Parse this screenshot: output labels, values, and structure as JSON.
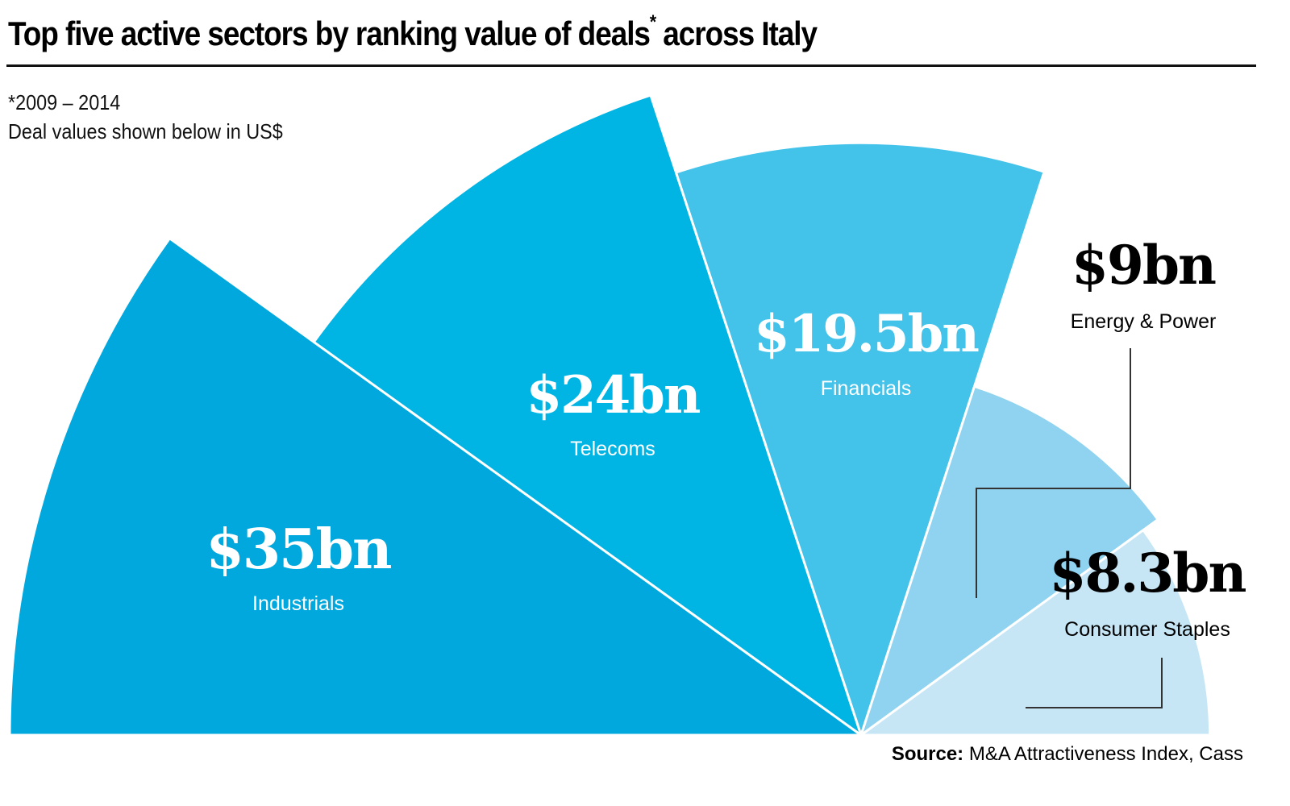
{
  "header": {
    "title": "Top five active sectors by ranking value of deals",
    "title_mark": "*",
    "title_suffix": " across Italy",
    "footnote": "*2009 – 2014",
    "subtitle": "Deal values shown below in US$"
  },
  "source": {
    "label": "Source:",
    "text": " M&A Attractiveness Index, Cass"
  },
  "chart_data": {
    "type": "pie",
    "variant": "polar-area half-rose",
    "title": "Top five active sectors by ranking value of deals* across Italy",
    "subtitle": "Deal values shown below in US$",
    "note": "*2009 – 2014",
    "unit": "US$ bn",
    "categories": [
      "Industrials",
      "Telecoms",
      "Financials",
      "Energy & Power",
      "Consumer Staples"
    ],
    "values": [
      35,
      24,
      19.5,
      9,
      8.3
    ],
    "value_labels": [
      "$35bn",
      "$24bn",
      "$19.5bn",
      "$9bn",
      "$8.3bn"
    ],
    "colors": [
      "#00a8de",
      "#00b5e4",
      "#43c2ea",
      "#8fd3f0",
      "#c6e6f6"
    ],
    "label_colors": [
      "#ffffff",
      "#ffffff",
      "#ffffff",
      "#000000",
      "#000000"
    ],
    "legend": "none"
  }
}
